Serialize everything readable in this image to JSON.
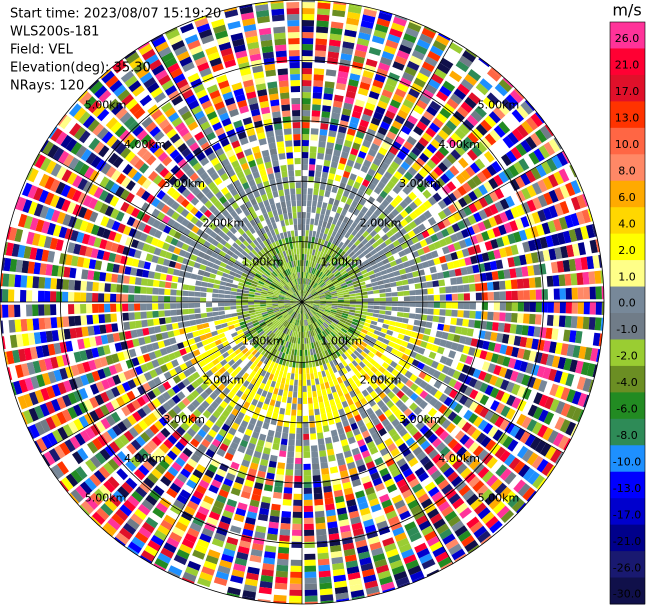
{
  "chart_data": {
    "type": "ppi",
    "info": [
      "Start time: 2023/08/07 15:19:20",
      "WLS200s-181",
      "Field: VEL",
      "Elevation(deg): 35.30",
      "NRays: 120"
    ],
    "range_labels": [
      "1.00km",
      "2.00km",
      "3.00km",
      "4.00km",
      "5.00km"
    ],
    "colorbar": {
      "title": "m/s",
      "ticks": [
        {
          "value": 26,
          "label": "26.0"
        },
        {
          "value": 21,
          "label": "21.0"
        },
        {
          "value": 17,
          "label": "17.0"
        },
        {
          "value": 13,
          "label": "13.0"
        },
        {
          "value": 10,
          "label": "10.0"
        },
        {
          "value": 8,
          "label": "8.0"
        },
        {
          "value": 6,
          "label": "6.0"
        },
        {
          "value": 4,
          "label": "4.0"
        },
        {
          "value": 2,
          "label": "2.0"
        },
        {
          "value": 1,
          "label": "1.0"
        },
        {
          "value": 0,
          "label": "0.0"
        },
        {
          "value": -1,
          "label": "-1.0"
        },
        {
          "value": -2,
          "label": "-2.0"
        },
        {
          "value": -4,
          "label": "-4.0"
        },
        {
          "value": -6,
          "label": "-6.0"
        },
        {
          "value": -8,
          "label": "-8.0"
        },
        {
          "value": -10,
          "label": "-10.0"
        },
        {
          "value": -13,
          "label": "-13.0"
        },
        {
          "value": -17,
          "label": "-17.0"
        },
        {
          "value": -21,
          "label": "-21.0"
        },
        {
          "value": -26,
          "label": "-26.0"
        },
        {
          "value": -30,
          "label": "-30.0"
        }
      ],
      "colors": [
        "#ff3399",
        "#ff0033",
        "#e0102a",
        "#ff3300",
        "#ff6644",
        "#ff8866",
        "#ffaa00",
        "#ffd700",
        "#ffff00",
        "#ffff88",
        "#778899",
        "#707c88",
        "#9acd32",
        "#6b8e23",
        "#228b22",
        "#2e8b57",
        "#1e90ff",
        "#0000ff",
        "#0000cd",
        "#00008b",
        "#191970",
        "#10104a"
      ]
    }
  }
}
